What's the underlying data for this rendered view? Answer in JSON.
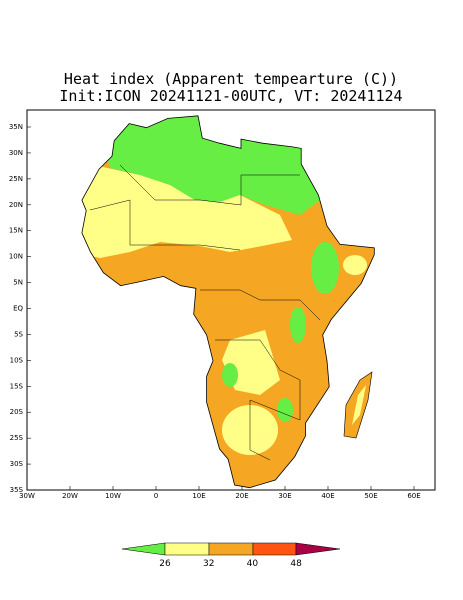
{
  "header": {
    "title": "Heat index (Apparent tempearture (C))",
    "subtitle": "Init:ICON 20241121-00UTC, VT: 20241124"
  },
  "axes": {
    "lat_labels": [
      "35N",
      "30N",
      "25N",
      "20N",
      "15N",
      "10N",
      "5N",
      "EQ",
      "5S",
      "10S",
      "15S",
      "20S",
      "25S",
      "30S",
      "35S"
    ],
    "lon_labels": [
      "30W",
      "20W",
      "10W",
      "0",
      "10E",
      "20E",
      "30E",
      "40E",
      "50E",
      "60E"
    ]
  },
  "colorbar": {
    "labels": [
      26,
      32,
      40,
      48
    ]
  }
}
